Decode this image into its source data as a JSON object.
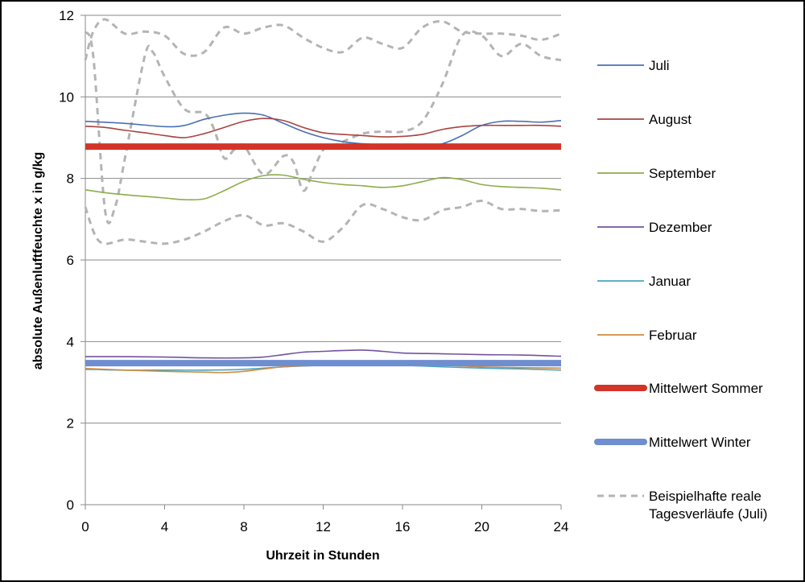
{
  "chart_data": {
    "type": "line",
    "title": "",
    "xlabel": "Uhrzeit in Stunden",
    "ylabel": "absolute Außenluftfeuchte x in g/kg",
    "xlim": [
      0,
      24
    ],
    "ylim": [
      0,
      12
    ],
    "xticks": [
      0,
      4,
      8,
      12,
      16,
      20,
      24
    ],
    "yticks": [
      0,
      2,
      4,
      6,
      8,
      10,
      12
    ],
    "grid": "horizontal",
    "legend_position": "right",
    "series": [
      {
        "name": "Juli",
        "color": "#4a6fb5",
        "width": 1.6,
        "dash": "solid",
        "points": [
          [
            0,
            9.4
          ],
          [
            2,
            9.35
          ],
          [
            4,
            9.27
          ],
          [
            5,
            9.3
          ],
          [
            6,
            9.45
          ],
          [
            7,
            9.55
          ],
          [
            8,
            9.6
          ],
          [
            9,
            9.55
          ],
          [
            10,
            9.35
          ],
          [
            11,
            9.15
          ],
          [
            12,
            9.0
          ],
          [
            13,
            8.9
          ],
          [
            14,
            8.85
          ],
          [
            15,
            8.82
          ],
          [
            16,
            8.8
          ],
          [
            17,
            8.8
          ],
          [
            18,
            8.85
          ],
          [
            19,
            9.05
          ],
          [
            20,
            9.3
          ],
          [
            21,
            9.4
          ],
          [
            22,
            9.4
          ],
          [
            23,
            9.38
          ],
          [
            24,
            9.42
          ]
        ]
      },
      {
        "name": "August",
        "color": "#a84440",
        "width": 1.6,
        "dash": "solid",
        "points": [
          [
            0,
            9.28
          ],
          [
            1,
            9.25
          ],
          [
            2,
            9.18
          ],
          [
            3,
            9.12
          ],
          [
            4,
            9.05
          ],
          [
            5,
            9.0
          ],
          [
            6,
            9.1
          ],
          [
            7,
            9.25
          ],
          [
            8,
            9.4
          ],
          [
            9,
            9.47
          ],
          [
            10,
            9.42
          ],
          [
            11,
            9.25
          ],
          [
            12,
            9.12
          ],
          [
            13,
            9.08
          ],
          [
            14,
            9.05
          ],
          [
            15,
            9.02
          ],
          [
            16,
            9.03
          ],
          [
            17,
            9.08
          ],
          [
            18,
            9.2
          ],
          [
            19,
            9.27
          ],
          [
            20,
            9.3
          ],
          [
            21,
            9.3
          ],
          [
            22,
            9.3
          ],
          [
            23,
            9.3
          ],
          [
            24,
            9.28
          ]
        ]
      },
      {
        "name": "September",
        "color": "#8cad49",
        "width": 1.6,
        "dash": "solid",
        "points": [
          [
            0,
            7.72
          ],
          [
            1,
            7.65
          ],
          [
            2,
            7.6
          ],
          [
            3,
            7.56
          ],
          [
            4,
            7.52
          ],
          [
            5,
            7.48
          ],
          [
            6,
            7.5
          ],
          [
            7,
            7.7
          ],
          [
            8,
            7.93
          ],
          [
            9,
            8.07
          ],
          [
            10,
            8.08
          ],
          [
            11,
            7.98
          ],
          [
            12,
            7.9
          ],
          [
            13,
            7.85
          ],
          [
            14,
            7.82
          ],
          [
            15,
            7.78
          ],
          [
            16,
            7.82
          ],
          [
            17,
            7.92
          ],
          [
            18,
            8.02
          ],
          [
            19,
            7.97
          ],
          [
            20,
            7.85
          ],
          [
            21,
            7.8
          ],
          [
            22,
            7.78
          ],
          [
            23,
            7.76
          ],
          [
            24,
            7.72
          ]
        ]
      },
      {
        "name": "Dezember",
        "color": "#7252a0",
        "width": 1.6,
        "dash": "solid",
        "points": [
          [
            0,
            3.63
          ],
          [
            2,
            3.63
          ],
          [
            4,
            3.62
          ],
          [
            6,
            3.6
          ],
          [
            8,
            3.6
          ],
          [
            9,
            3.62
          ],
          [
            10,
            3.68
          ],
          [
            11,
            3.74
          ],
          [
            12,
            3.76
          ],
          [
            13,
            3.78
          ],
          [
            14,
            3.79
          ],
          [
            15,
            3.76
          ],
          [
            16,
            3.72
          ],
          [
            18,
            3.7
          ],
          [
            20,
            3.68
          ],
          [
            22,
            3.67
          ],
          [
            24,
            3.64
          ]
        ]
      },
      {
        "name": "Januar",
        "color": "#4aa5bf",
        "width": 1.6,
        "dash": "solid",
        "points": [
          [
            0,
            3.32
          ],
          [
            2,
            3.3
          ],
          [
            4,
            3.3
          ],
          [
            6,
            3.3
          ],
          [
            8,
            3.32
          ],
          [
            10,
            3.38
          ],
          [
            12,
            3.42
          ],
          [
            14,
            3.45
          ],
          [
            16,
            3.42
          ],
          [
            18,
            3.38
          ],
          [
            20,
            3.35
          ],
          [
            22,
            3.33
          ],
          [
            24,
            3.3
          ]
        ]
      },
      {
        "name": "Februar",
        "color": "#d28b3d",
        "width": 1.6,
        "dash": "solid",
        "points": [
          [
            0,
            3.34
          ],
          [
            2,
            3.3
          ],
          [
            4,
            3.27
          ],
          [
            6,
            3.25
          ],
          [
            7,
            3.24
          ],
          [
            8,
            3.27
          ],
          [
            9,
            3.33
          ],
          [
            10,
            3.38
          ],
          [
            12,
            3.42
          ],
          [
            14,
            3.44
          ],
          [
            16,
            3.44
          ],
          [
            18,
            3.42
          ],
          [
            20,
            3.38
          ],
          [
            22,
            3.36
          ],
          [
            24,
            3.35
          ]
        ]
      },
      {
        "name": "Mittelwert Sommer",
        "color": "#d33428",
        "width": 8,
        "dash": "solid",
        "points": [
          [
            0,
            8.78
          ],
          [
            24,
            8.78
          ]
        ]
      },
      {
        "name": "Mittelwert Winter",
        "color": "#6e8ed0",
        "width": 8,
        "dash": "solid",
        "points": [
          [
            0,
            3.47
          ],
          [
            24,
            3.47
          ]
        ]
      },
      {
        "name": "Beispielhafte reale Tagesverläufe (Juli)",
        "color": "#b4b4b4",
        "width": 3,
        "dash": "8,6",
        "lines": [
          [
            [
              0,
              11.6
            ],
            [
              0.4,
              11.0
            ],
            [
              1,
              7.2
            ],
            [
              1.5,
              7.3
            ],
            [
              2,
              8.5
            ],
            [
              3,
              11.0
            ],
            [
              3.4,
              11.1
            ],
            [
              4,
              10.5
            ],
            [
              5,
              9.7
            ],
            [
              6,
              9.6
            ],
            [
              6.5,
              9.2
            ],
            [
              7,
              8.5
            ],
            [
              7.5,
              8.7
            ],
            [
              8,
              8.8
            ],
            [
              9,
              8.1
            ],
            [
              10,
              8.55
            ],
            [
              10.5,
              8.4
            ],
            [
              11,
              7.7
            ],
            [
              11.5,
              8.2
            ],
            [
              12,
              8.7
            ],
            [
              12.5,
              8.8
            ],
            [
              13,
              8.9
            ],
            [
              14,
              9.1
            ],
            [
              15,
              9.15
            ],
            [
              16,
              9.15
            ],
            [
              17,
              9.4
            ],
            [
              18,
              10.3
            ],
            [
              19,
              11.5
            ],
            [
              20,
              11.5
            ],
            [
              21,
              11.0
            ],
            [
              22,
              11.3
            ],
            [
              23,
              11.0
            ],
            [
              24,
              10.9
            ]
          ],
          [
            [
              0,
              7.3
            ],
            [
              0.5,
              6.6
            ],
            [
              1,
              6.4
            ],
            [
              2,
              6.5
            ],
            [
              3,
              6.45
            ],
            [
              4,
              6.4
            ],
            [
              5,
              6.5
            ],
            [
              6,
              6.7
            ],
            [
              7,
              6.95
            ],
            [
              8,
              7.1
            ],
            [
              9,
              6.85
            ],
            [
              10,
              6.9
            ],
            [
              11,
              6.7
            ],
            [
              12,
              6.45
            ],
            [
              13,
              6.8
            ],
            [
              14,
              7.35
            ],
            [
              15,
              7.25
            ],
            [
              16,
              7.05
            ],
            [
              17,
              6.98
            ],
            [
              18,
              7.22
            ],
            [
              19,
              7.3
            ],
            [
              20,
              7.45
            ],
            [
              21,
              7.25
            ],
            [
              22,
              7.25
            ],
            [
              23,
              7.2
            ],
            [
              24,
              7.22
            ]
          ],
          [
            [
              0,
              10.9
            ],
            [
              0.4,
              11.6
            ],
            [
              1,
              11.9
            ],
            [
              2,
              11.55
            ],
            [
              3,
              11.6
            ],
            [
              4,
              11.5
            ],
            [
              5,
              11.05
            ],
            [
              6,
              11.1
            ],
            [
              7,
              11.7
            ],
            [
              8,
              11.55
            ],
            [
              9,
              11.7
            ],
            [
              10,
              11.75
            ],
            [
              11,
              11.45
            ],
            [
              12,
              11.2
            ],
            [
              13,
              11.1
            ],
            [
              14,
              11.45
            ],
            [
              15,
              11.3
            ],
            [
              16,
              11.2
            ],
            [
              17,
              11.7
            ],
            [
              18,
              11.85
            ],
            [
              19,
              11.6
            ],
            [
              20,
              11.55
            ],
            [
              21,
              11.55
            ],
            [
              22,
              11.5
            ],
            [
              23,
              11.4
            ],
            [
              24,
              11.55
            ]
          ]
        ]
      }
    ]
  }
}
